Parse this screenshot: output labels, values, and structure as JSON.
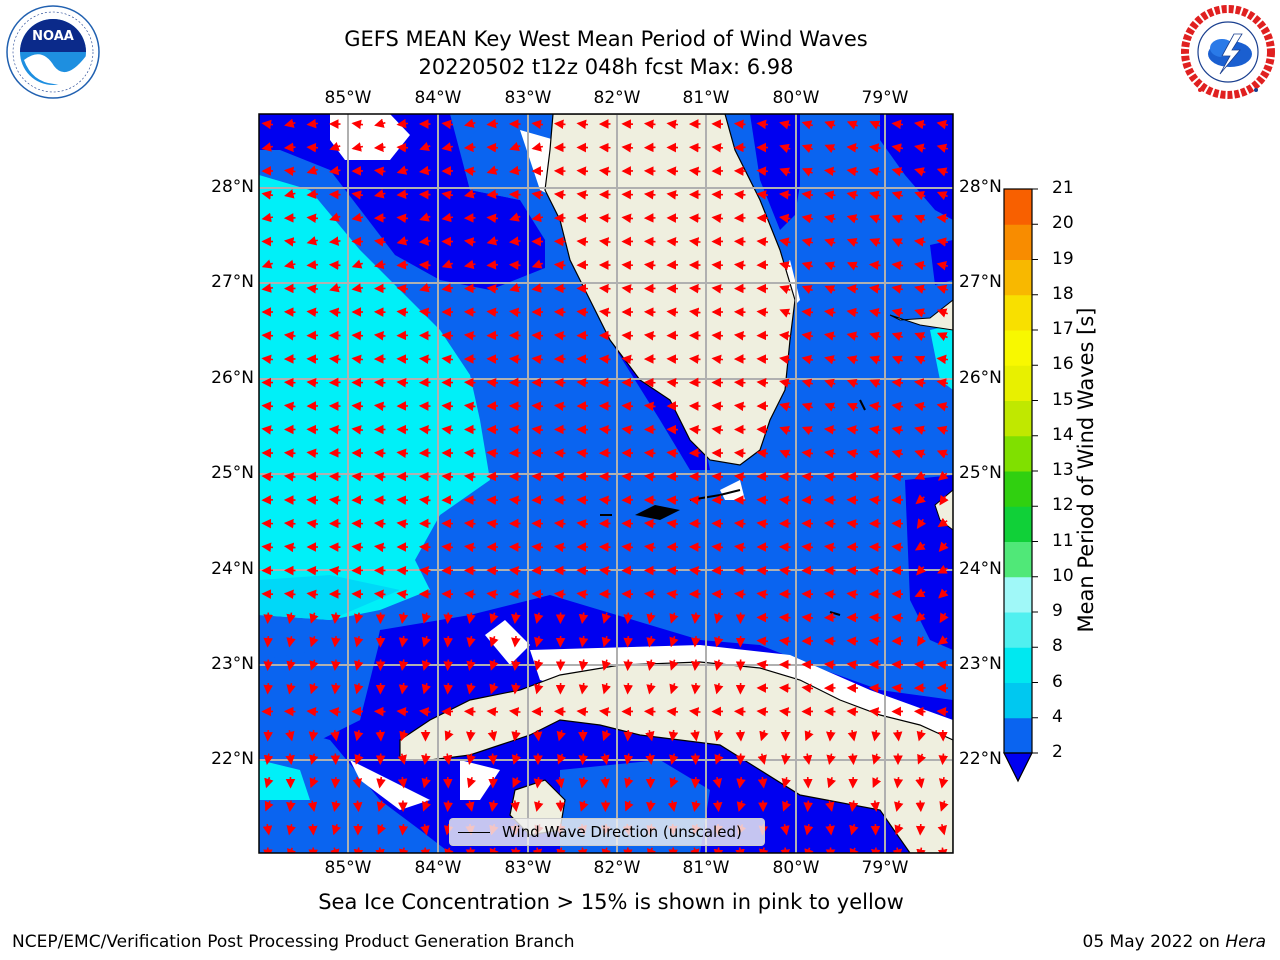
{
  "title_line1": "GEFS MEAN Key West Mean Period of Wind Waves",
  "title_line2": "20220502 t12z 048h fcst   Max: 6.98",
  "lon_labels": [
    "85°W",
    "84°W",
    "83°W",
    "82°W",
    "81°W",
    "80°W",
    "79°W"
  ],
  "lat_labels": [
    "28°N",
    "27°N",
    "26°N",
    "25°N",
    "24°N",
    "23°N",
    "22°N"
  ],
  "colorbar": {
    "label": "Mean Period of Wind Waves [s]",
    "ticks": [
      "2",
      "4",
      "6",
      "8",
      "9",
      "10",
      "11",
      "12",
      "13",
      "14",
      "15",
      "16",
      "17",
      "18",
      "19",
      "20",
      "21"
    ],
    "colors": [
      "#0a64f0",
      "#00c8f0",
      "#00e8f0",
      "#50f0f0",
      "#a0f8f8",
      "#50e878",
      "#10d038",
      "#30d010",
      "#80e000",
      "#c0e800",
      "#e8f000",
      "#f8f800",
      "#f8e000",
      "#f8b800",
      "#f88c00",
      "#f86000",
      "#f83000",
      "#f80000"
    ],
    "extend_color": "#0000f0"
  },
  "legend_text": "Wind Wave Direction (unscaled)",
  "caption": "Sea Ice Concentration > 15% is shown in pink to yellow",
  "footer_left": "NCEP/EMC/Verification Post Processing Product Generation Branch",
  "footer_date": "05 May 2022 on ",
  "footer_machine": "Hera",
  "logos": {
    "left": "NOAA",
    "right": "NATIONAL WEATHER SERVICE"
  },
  "colors": {
    "land": "#efefdf",
    "blue_dark": "#0000f0",
    "blue_mid": "#0a64f0",
    "cyan": "#00f0f8",
    "arrow": "#ff0000",
    "grid": "#b0b0b0"
  }
}
